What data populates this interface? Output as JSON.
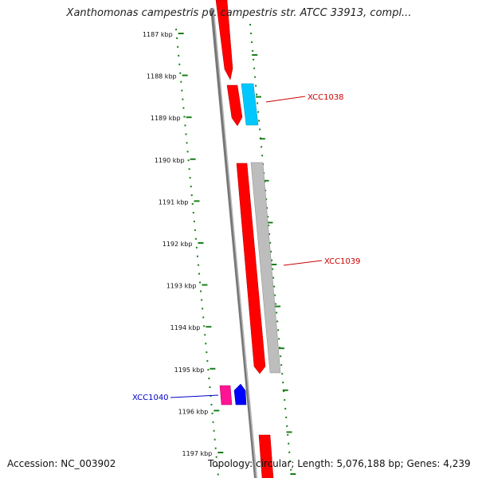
{
  "title": "Xanthomonas campestris pv. campestris str. ATCC 33913, compl...",
  "footer": {
    "accession": "Accession: NC_003902",
    "summary": "Topology: circular; Length: 5,076,188 bp; Genes: 4,239"
  },
  "ruler": {
    "unit_label": "kbp",
    "ticks": [
      {
        "label": "1187 kbp"
      },
      {
        "label": "1188 kbp"
      },
      {
        "label": "1189 kbp"
      },
      {
        "label": "1190 kbp"
      },
      {
        "label": "1191 kbp"
      },
      {
        "label": "1192 kbp"
      },
      {
        "label": "1193 kbp"
      },
      {
        "label": "1194 kbp"
      },
      {
        "label": "1195 kbp"
      },
      {
        "label": "1196 kbp"
      },
      {
        "label": "1197 kbp"
      }
    ]
  },
  "gene_labels": [
    {
      "label": "XCC1038",
      "color": "#cc0000"
    },
    {
      "label": "XCC1039",
      "color": "#cc0000"
    },
    {
      "label": "XCC1040",
      "color": "#0000cc"
    }
  ],
  "colors": {
    "ruler": "#1a7f1a",
    "backbone": "#777777",
    "gene_red": "#ff0000",
    "gene_cyan": "#00c8ff",
    "gene_gray": "#bdbdbd",
    "gene_pink": "#ff1493",
    "gene_blue": "#0000ff"
  }
}
